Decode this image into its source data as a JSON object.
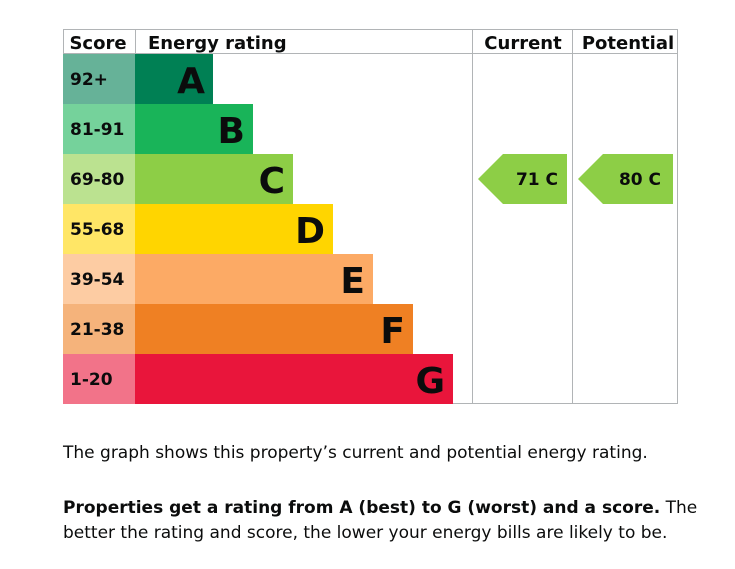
{
  "chart_data": {
    "type": "bar",
    "headers": {
      "score": "Score",
      "rating": "Energy rating",
      "current": "Current",
      "potential": "Potential"
    },
    "bands": [
      {
        "score": "92+",
        "letter": "A",
        "color": "#008054",
        "score_bg": "#66b298",
        "level": 1
      },
      {
        "score": "81-91",
        "letter": "B",
        "color": "#19b459",
        "score_bg": "#75d29b",
        "level": 2
      },
      {
        "score": "69-80",
        "letter": "C",
        "color": "#8dce46",
        "score_bg": "#bbe290",
        "level": 3
      },
      {
        "score": "55-68",
        "letter": "D",
        "color": "#ffd500",
        "score_bg": "#ffe666",
        "level": 4
      },
      {
        "score": "39-54",
        "letter": "E",
        "color": "#fcaa65",
        "score_bg": "#fdcca3",
        "level": 5
      },
      {
        "score": "21-38",
        "letter": "F",
        "color": "#ef8023",
        "score_bg": "#f5b37b",
        "level": 6
      },
      {
        "score": "1-20",
        "letter": "G",
        "color": "#e9153b",
        "score_bg": "#f27389",
        "level": 7
      }
    ],
    "current": {
      "score": 71,
      "letter": "C",
      "label": "71 C",
      "color": "#8dce46"
    },
    "potential": {
      "score": 80,
      "letter": "C",
      "label": "80 C",
      "color": "#8dce46"
    }
  },
  "description": {
    "line1": "The graph shows this property’s current and potential energy rating.",
    "bold": "Properties get a rating from A (best) to G (worst) and a score.",
    "rest": " The better the rating and score, the lower your energy bills are likely to be."
  }
}
